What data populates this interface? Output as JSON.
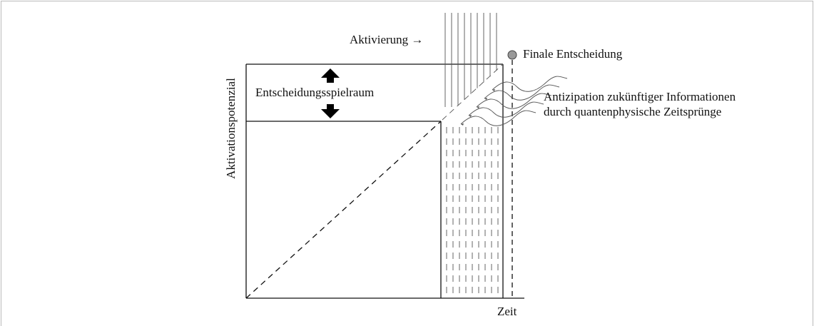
{
  "diagram": {
    "y_axis_label": "Aktivationspotenzial",
    "x_axis_label": "Zeit",
    "activation_label": "Aktivierung →",
    "final_label": "Finale Entscheidung",
    "range_label": "Entscheidungsspielraum",
    "annotation": [
      "Antizipation zukünftiger Informationen",
      "durch quantenphysische Zeitsprünge"
    ]
  }
}
